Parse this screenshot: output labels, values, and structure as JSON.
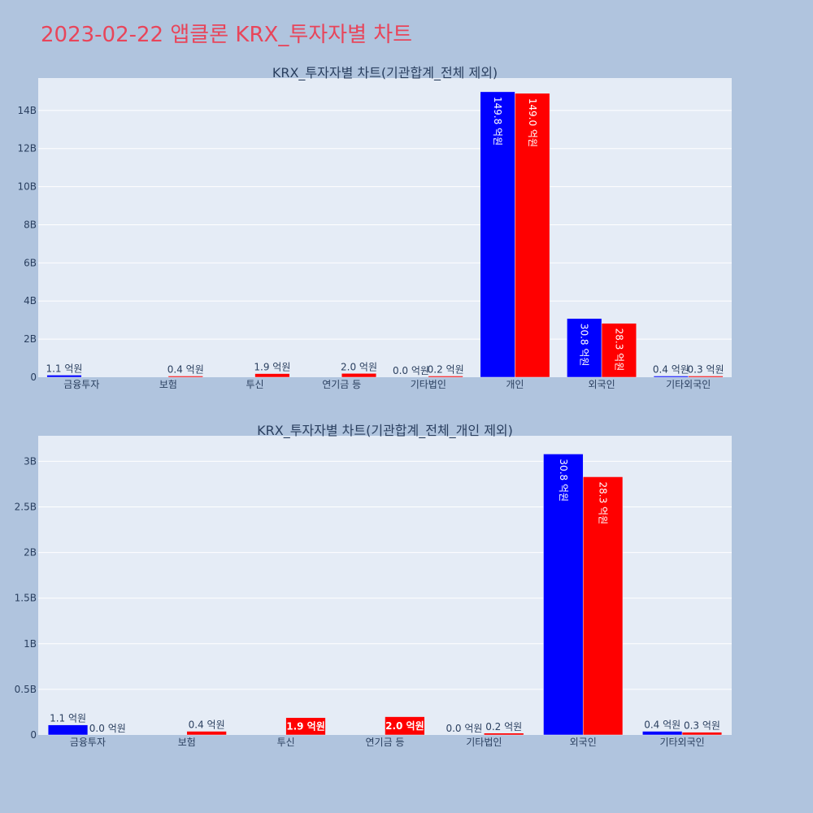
{
  "page": {
    "title": "2023-02-22 앱클론 KRX_투자자별 차트"
  },
  "colors": {
    "background": "#b0c4de",
    "plot_background": "#e5ecf6",
    "grid": "#ffffff",
    "title": "#e8455a",
    "buy": "#0000ff",
    "sell": "#ff0000",
    "text": "#2a3f5f"
  },
  "chart_data": [
    {
      "type": "bar",
      "title": "KRX_투자자별 차트(기관합계_전체 제외)",
      "categories": [
        "금융투자",
        "보험",
        "투신",
        "연기금 등",
        "기타법인",
        "개인",
        "외국인",
        "기타외국인"
      ],
      "series": [
        {
          "color": "#0000ff",
          "values": [
            110000000,
            0,
            0,
            0,
            0,
            14980000000,
            3080000000,
            40000000
          ],
          "labels": [
            "1.1 억원",
            "",
            "",
            "",
            "0.0 억원",
            "149.8 억원",
            "30.8 억원",
            "0.4 억원"
          ]
        },
        {
          "color": "#ff0000",
          "values": [
            0,
            40000000,
            190000000,
            200000000,
            20000000,
            14900000000,
            2830000000,
            30000000
          ],
          "labels": [
            "",
            "0.4 억원",
            "1.9 억원",
            "2.0 억원",
            "0.2 억원",
            "149.0 억원",
            "28.3 억원",
            "0.3 억원"
          ]
        }
      ],
      "ylim": [
        0,
        15700000000
      ],
      "yticks": [
        0,
        2000000000,
        4000000000,
        6000000000,
        8000000000,
        10000000000,
        12000000000,
        14000000000
      ],
      "ytick_labels": [
        "0",
        "2B",
        "4B",
        "6B",
        "8B",
        "10B",
        "12B",
        "14B"
      ],
      "grid": true,
      "legend": "none"
    },
    {
      "type": "bar",
      "title": "KRX_투자자별 차트(기관합계_전체_개인 제외)",
      "categories": [
        "금융투자",
        "보험",
        "투신",
        "연기금 등",
        "기타법인",
        "외국인",
        "기타외국인"
      ],
      "series": [
        {
          "color": "#0000ff",
          "values": [
            110000000,
            0,
            0,
            0,
            0,
            3080000000,
            40000000
          ],
          "labels": [
            "1.1 억원",
            "",
            "",
            "",
            "0.0 억원",
            "30.8 억원",
            "0.4 억원"
          ]
        },
        {
          "color": "#ff0000",
          "values": [
            0,
            40000000,
            190000000,
            200000000,
            20000000,
            2830000000,
            30000000
          ],
          "labels": [
            "0.0 억원",
            "0.4 억원",
            "1.9 억원",
            "2.0 억원",
            "0.2 억원",
            "28.3 억원",
            "0.3 억원"
          ]
        }
      ],
      "ylim": [
        0,
        3280000000
      ],
      "yticks": [
        0,
        500000000,
        1000000000,
        1500000000,
        2000000000,
        2500000000,
        3000000000
      ],
      "ytick_labels": [
        "0",
        "0.5B",
        "1B",
        "1.5B",
        "2B",
        "2.5B",
        "3B"
      ],
      "grid": true,
      "legend": "none"
    }
  ]
}
